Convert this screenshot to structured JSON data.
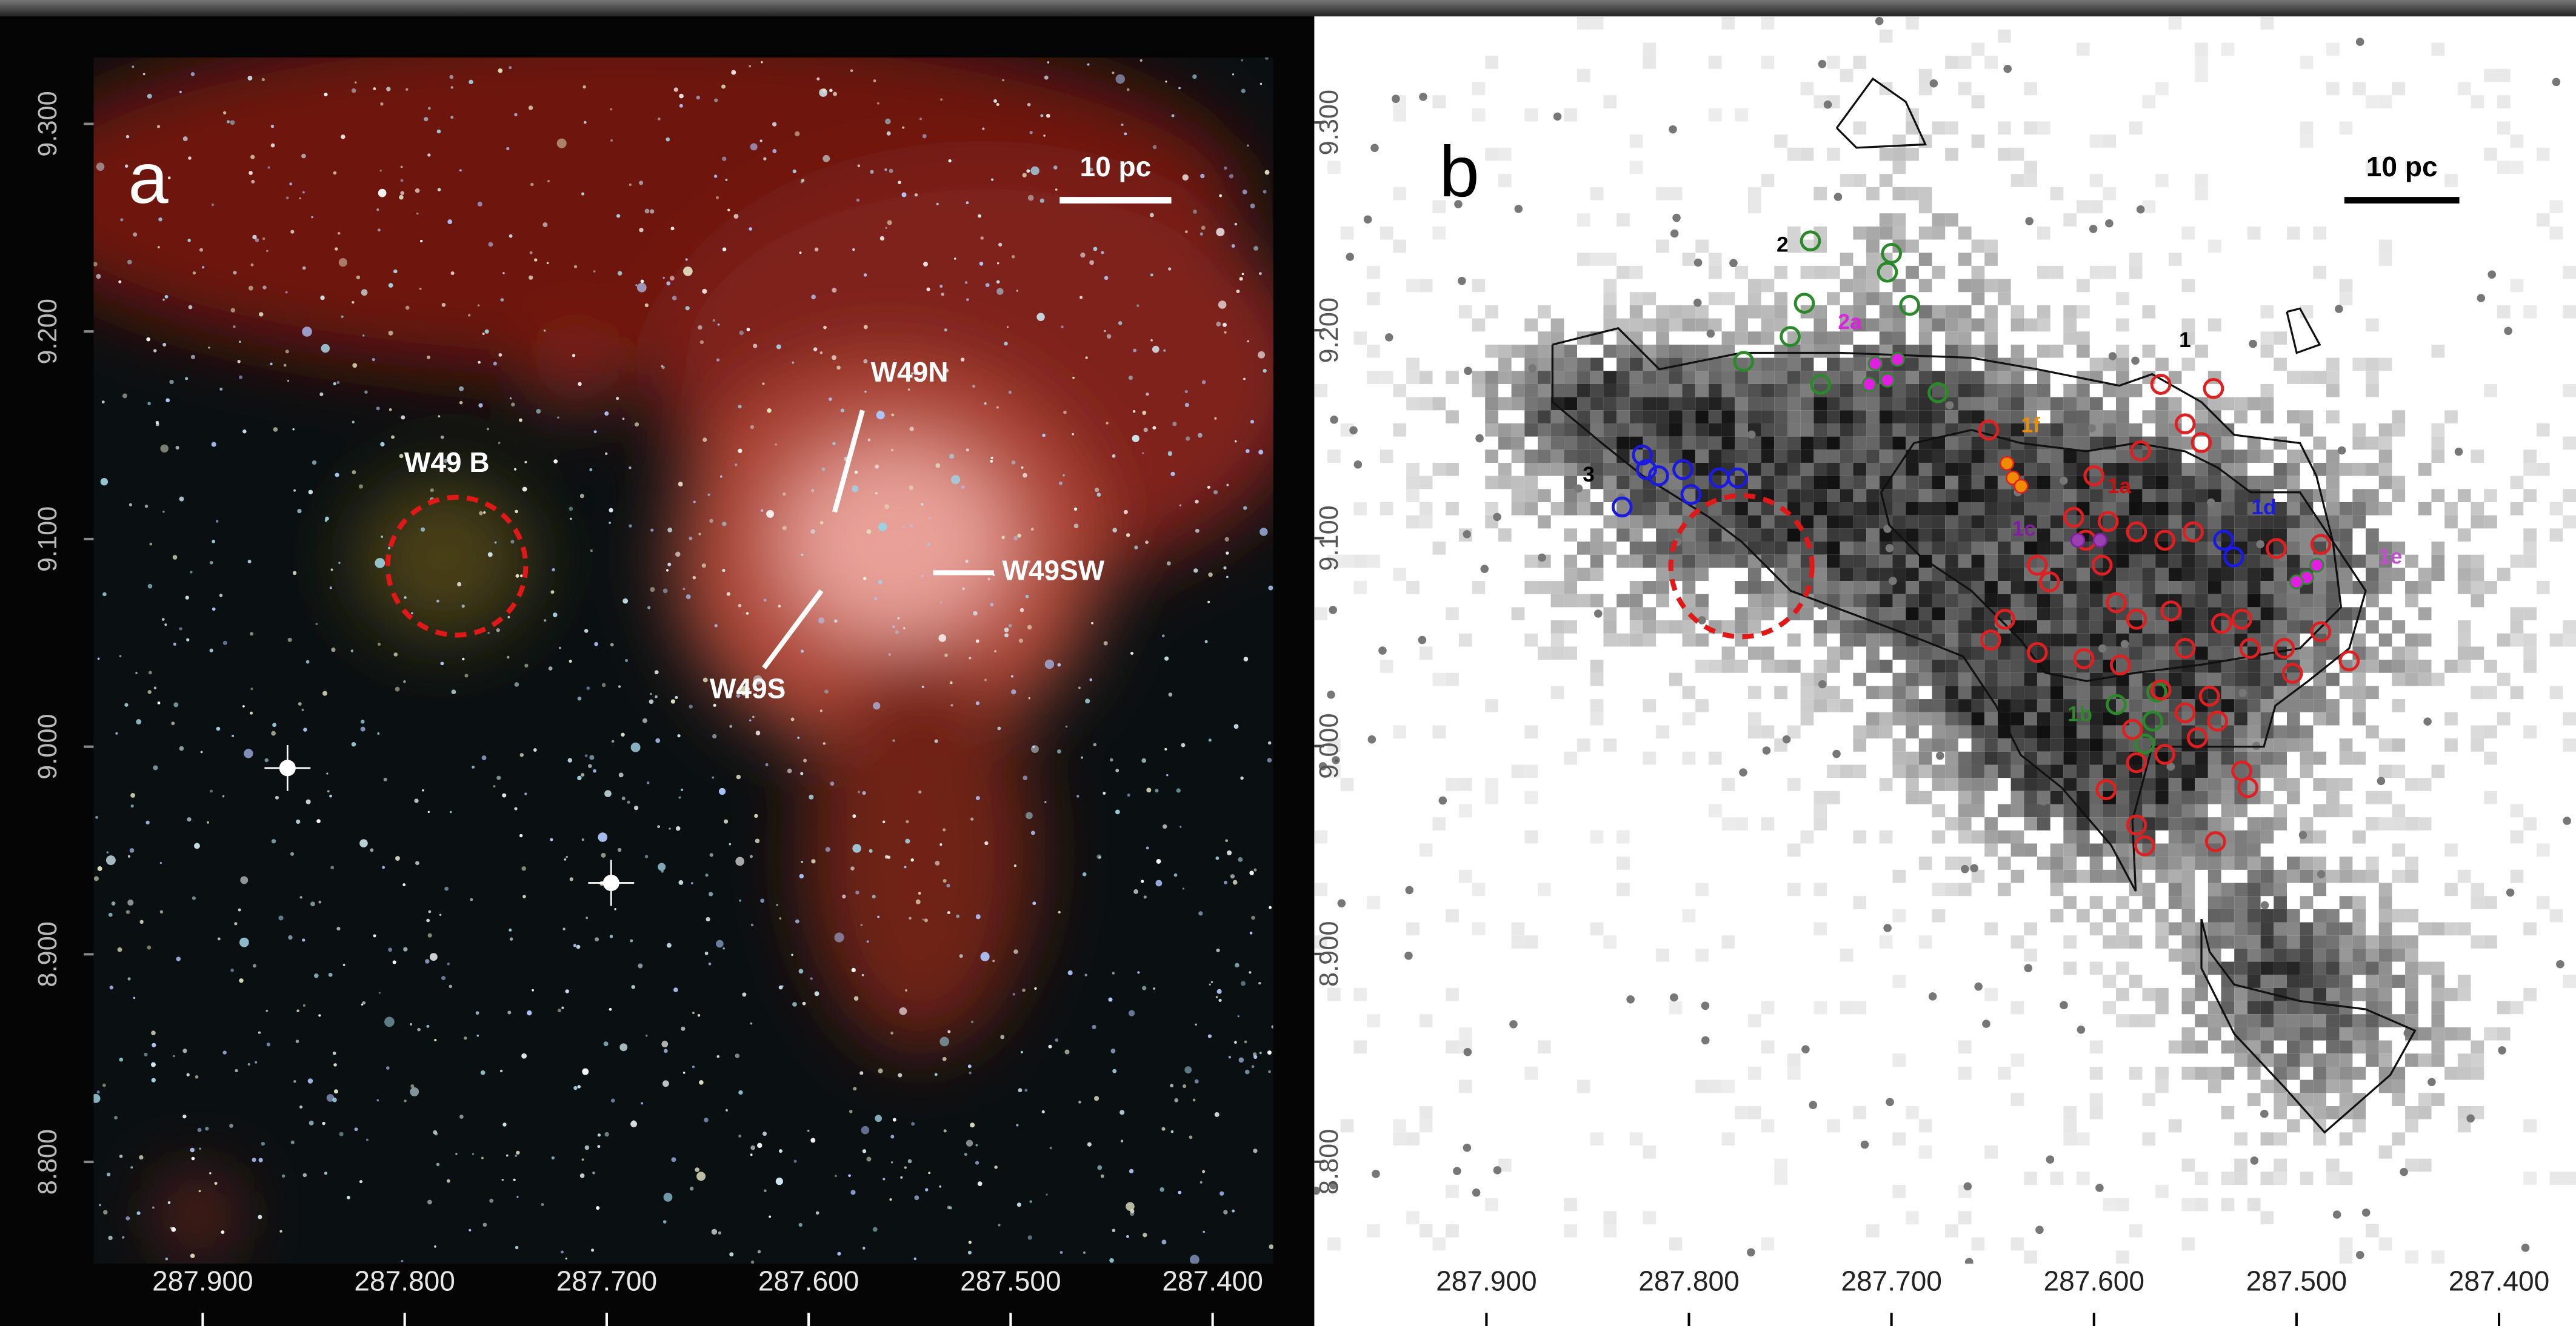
{
  "chart_data": [
    {
      "type": "image",
      "panel_label": "a",
      "scale_bar": "10 pc",
      "annotations": [
        {
          "text": "W49 B",
          "color": "#ffffff"
        },
        {
          "text": "W49N",
          "color": "#ffffff"
        },
        {
          "text": "W49SW",
          "color": "#ffffff"
        },
        {
          "text": "W49S",
          "color": "#ffffff"
        }
      ],
      "xlim": [
        287.954,
        287.37
      ],
      "ylim": [
        8.751,
        9.332
      ],
      "xticks": [
        {
          "value": 287.9,
          "label": "287.900"
        },
        {
          "value": 287.8,
          "label": "287.800"
        },
        {
          "value": 287.7,
          "label": "287.700"
        },
        {
          "value": 287.6,
          "label": "287.600"
        },
        {
          "value": 287.5,
          "label": "287.500"
        },
        {
          "value": 287.4,
          "label": "287.400"
        }
      ],
      "yticks": [
        {
          "value": 8.8,
          "label": "8.800"
        },
        {
          "value": 8.9,
          "label": "8.900"
        },
        {
          "value": 9.0,
          "label": "9.000"
        },
        {
          "value": 9.1,
          "label": "9.100"
        },
        {
          "value": 9.2,
          "label": "9.200"
        },
        {
          "value": 9.3,
          "label": "9.300"
        }
      ]
    },
    {
      "type": "scatter",
      "panel_label": "b",
      "scale_bar": "10 pc",
      "annotations": [
        {
          "text": "1",
          "color": "#000000"
        },
        {
          "text": "2",
          "color": "#000000"
        },
        {
          "text": "3",
          "color": "#000000"
        },
        {
          "text": "2a",
          "color": "#e020e0"
        },
        {
          "text": "1f",
          "color": "#f08c00"
        },
        {
          "text": "1a",
          "color": "#d01010"
        },
        {
          "text": "1d",
          "color": "#1a1ae0"
        },
        {
          "text": "1e",
          "color": "#c050d0"
        },
        {
          "text": "1b",
          "color": "#2a8a2a"
        },
        {
          "text": "1c",
          "color": "#8020a0"
        }
      ],
      "xlim": [
        287.985,
        287.362
      ],
      "ylim": [
        8.751,
        9.351
      ],
      "xticks": [
        {
          "value": 287.9,
          "label": "287.900"
        },
        {
          "value": 287.8,
          "label": "287.800"
        },
        {
          "value": 287.7,
          "label": "287.700"
        },
        {
          "value": 287.6,
          "label": "287.600"
        },
        {
          "value": 287.5,
          "label": "287.500"
        },
        {
          "value": 287.4,
          "label": "287.400"
        }
      ],
      "yticks": [
        {
          "value": 8.8,
          "label": "8.800"
        },
        {
          "value": 8.9,
          "label": "8.900"
        },
        {
          "value": 9.0,
          "label": "9.000"
        },
        {
          "value": 9.1,
          "label": "9.100"
        },
        {
          "value": 9.2,
          "label": "9.200"
        },
        {
          "value": 9.3,
          "label": "9.300"
        }
      ],
      "series": [
        {
          "color": "#2a8a2a",
          "x": [
            287.74,
            287.702,
            287.7,
            287.743,
            287.691,
            287.75,
            287.773,
            287.735,
            287.677,
            287.589,
            287.569,
            287.571,
            287.575
          ],
          "values": [
            9.243,
            9.228,
            9.237,
            9.213,
            9.212,
            9.197,
            9.185,
            9.174,
            9.17,
            9.02,
            9.026,
            9.012,
            9.001
          ]
        },
        {
          "color": "#1a1ae0",
          "x": [
            287.823,
            287.821,
            287.815,
            287.803,
            287.799,
            287.833,
            287.785,
            287.776,
            287.536,
            287.531
          ],
          "values": [
            9.14,
            9.133,
            9.13,
            9.133,
            9.121,
            9.115,
            9.129,
            9.129,
            9.099,
            9.091
          ]
        },
        {
          "color": "#e02020",
          "x": [
            287.652,
            287.567,
            287.541,
            287.555,
            287.547,
            287.577,
            287.6,
            287.61,
            287.593,
            287.579,
            287.565,
            287.551,
            287.604,
            287.596,
            287.628,
            287.622,
            287.589,
            287.579,
            287.562,
            287.537,
            287.527,
            287.523,
            287.506,
            287.488,
            287.474,
            287.51,
            287.488,
            287.644,
            287.651,
            287.628,
            287.605,
            287.587,
            287.567,
            287.555,
            287.543,
            287.539,
            287.549,
            287.579,
            287.594,
            287.579,
            287.575,
            287.527,
            287.524,
            287.54,
            287.565,
            287.581,
            287.555,
            287.502
          ],
          "values": [
            9.152,
            9.174,
            9.172,
            9.155,
            9.146,
            9.142,
            9.13,
            9.11,
            9.108,
            9.103,
            9.099,
            9.103,
            9.099,
            9.087,
            9.087,
            9.079,
            9.069,
            9.061,
            9.065,
            9.059,
            9.061,
            9.047,
            9.047,
            9.055,
            9.041,
            9.095,
            9.097,
            9.061,
            9.051,
            9.045,
            9.042,
            9.039,
            9.027,
            9.016,
            9.024,
            9.012,
            9.004,
            8.992,
            8.979,
            8.962,
            8.952,
            8.988,
            8.98,
            8.954,
            8.996,
            9.008,
            9.047,
            9.035
          ]
        },
        {
          "color": "#2a8a2a",
          "fill": "#e020e0",
          "x": [
            287.708,
            287.697,
            287.702,
            287.711,
            287.495,
            287.49,
            287.5
          ],
          "values": [
            9.184,
            9.186,
            9.176,
            9.174,
            9.081,
            9.087,
            9.079
          ]
        },
        {
          "color": "#8020a0",
          "fill": "#9a40b0",
          "x": [
            287.608,
            287.597
          ],
          "values": [
            9.099,
            9.099
          ]
        },
        {
          "color": "#e02020",
          "fill": "#f08c00",
          "x": [
            287.643,
            287.64,
            287.636
          ],
          "values": [
            9.136,
            9.129,
            9.125
          ]
        }
      ]
    }
  ]
}
